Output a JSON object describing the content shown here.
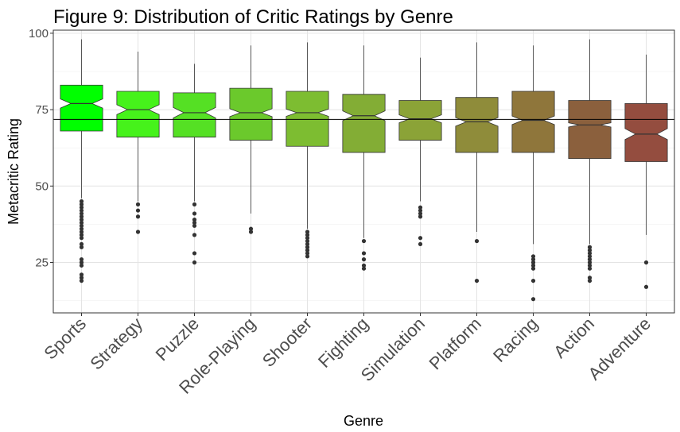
{
  "chart_data": {
    "type": "boxplot",
    "title": "Figure 9: Distribution of Critic Ratings by Genre",
    "xlabel": "Genre",
    "ylabel": "Metacritic Rating",
    "ylim": [
      8.5,
      101
    ],
    "yticks": [
      25,
      50,
      75,
      100
    ],
    "grid": true,
    "notched": true,
    "reference_line": 71.8,
    "categories": [
      "Sports",
      "Strategy",
      "Puzzle",
      "Role-Playing",
      "Shooter",
      "Fighting",
      "Simulation",
      "Platform",
      "Racing",
      "Action",
      "Adventure"
    ],
    "boxes": [
      {
        "genre": "Sports",
        "color": "#00ff00",
        "whisker_low": 46,
        "q1": 68,
        "median": 77,
        "q3": 83,
        "whisker_high": 98,
        "notch": 1.5,
        "outliers": [
          45,
          44,
          43,
          42,
          41,
          40,
          39,
          38,
          37,
          36,
          35,
          34,
          33,
          31,
          30,
          26,
          25,
          24,
          21,
          20,
          19
        ]
      },
      {
        "genre": "Strategy",
        "color": "#46f21b",
        "whisker_low": 45,
        "q1": 66,
        "median": 75,
        "q3": 81,
        "whisker_high": 94,
        "notch": 1.6,
        "outliers": [
          44,
          42,
          40,
          35
        ]
      },
      {
        "genre": "Puzzle",
        "color": "#55e024",
        "whisker_low": 45,
        "q1": 66,
        "median": 74,
        "q3": 80.5,
        "whisker_high": 90,
        "notch": 1.7,
        "outliers": [
          44,
          41,
          39,
          38,
          37,
          34,
          28,
          25
        ]
      },
      {
        "genre": "Role-Playing",
        "color": "#6bc92c",
        "whisker_low": 41,
        "q1": 65,
        "median": 74,
        "q3": 82,
        "whisker_high": 96,
        "notch": 1.3,
        "outliers": [
          36,
          35
        ]
      },
      {
        "genre": "Shooter",
        "color": "#7dbd31",
        "whisker_low": 36,
        "q1": 63,
        "median": 74,
        "q3": 81,
        "whisker_high": 97,
        "notch": 1.2,
        "outliers": [
          35,
          34,
          33,
          32,
          31,
          30,
          29,
          28,
          27
        ]
      },
      {
        "genre": "Fighting",
        "color": "#83ad35",
        "whisker_low": 33,
        "q1": 61,
        "median": 73,
        "q3": 80,
        "whisker_high": 96,
        "notch": 1.6,
        "outliers": [
          32,
          28,
          26,
          24,
          23
        ]
      },
      {
        "genre": "Simulation",
        "color": "#8ba337",
        "whisker_low": 45,
        "q1": 65,
        "median": 72,
        "q3": 78,
        "whisker_high": 92,
        "notch": 1.3,
        "outliers": [
          43,
          42,
          41,
          40,
          33,
          31
        ]
      },
      {
        "genre": "Platform",
        "color": "#8f8c3a",
        "whisker_low": 35,
        "q1": 61,
        "median": 71,
        "q3": 79,
        "whisker_high": 97,
        "notch": 1.4,
        "outliers": [
          32,
          19
        ]
      },
      {
        "genre": "Racing",
        "color": "#8f763b",
        "whisker_low": 31,
        "q1": 61,
        "median": 71.5,
        "q3": 81,
        "whisker_high": 96,
        "notch": 1.4,
        "outliers": [
          27,
          26,
          25,
          24,
          23,
          19,
          13
        ]
      },
      {
        "genre": "Action",
        "color": "#8b603d",
        "whisker_low": 31,
        "q1": 59,
        "median": 70,
        "q3": 78,
        "whisker_high": 98,
        "notch": 0.7,
        "outliers": [
          30,
          29,
          28,
          27,
          26,
          25,
          24,
          23,
          20,
          19
        ]
      },
      {
        "genre": "Adventure",
        "color": "#944d3f",
        "whisker_low": 34,
        "q1": 58,
        "median": 67,
        "q3": 77,
        "whisker_high": 93,
        "notch": 1.8,
        "outliers": [
          25,
          17
        ]
      }
    ]
  }
}
